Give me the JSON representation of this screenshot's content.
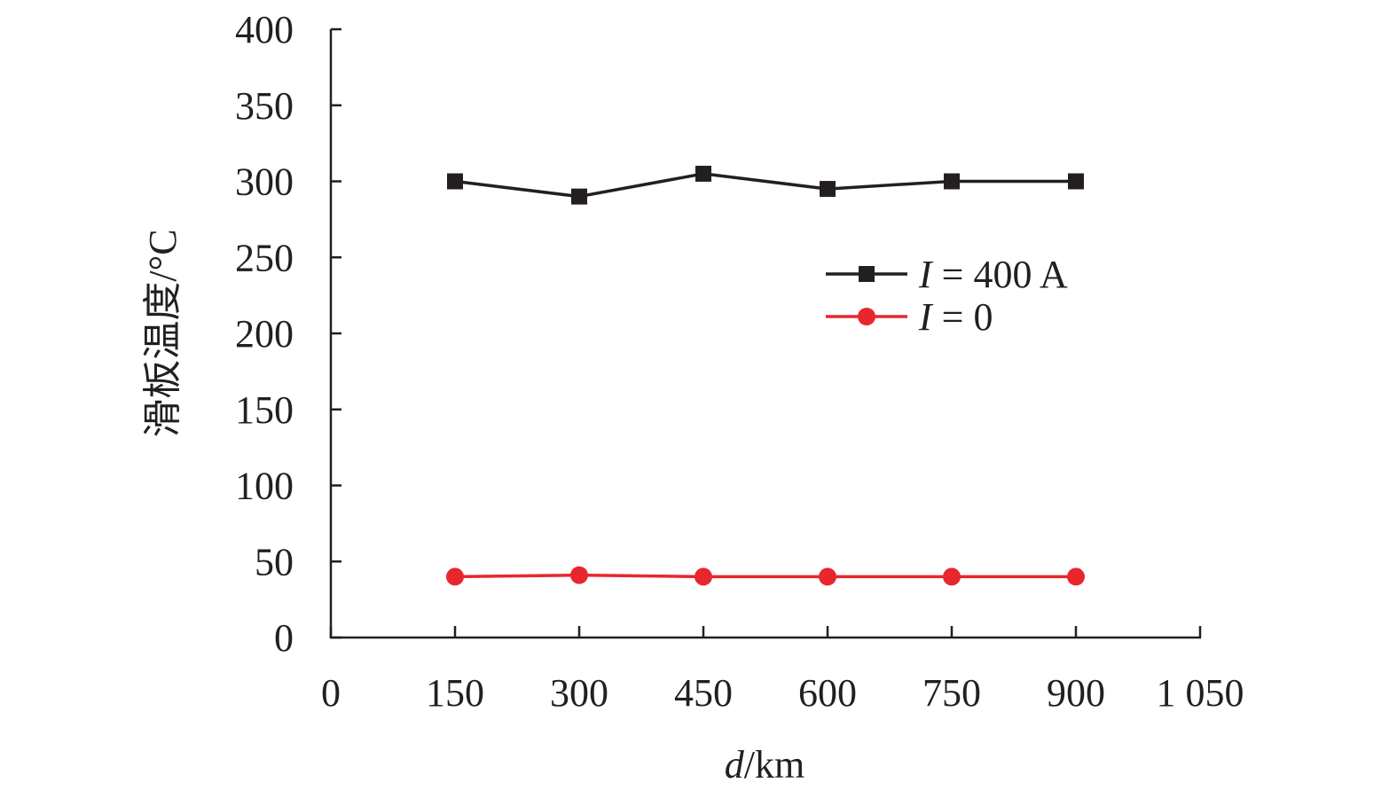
{
  "chart_data": {
    "type": "line",
    "title": "",
    "xlabel_italic": "d",
    "xlabel_unit": "/km",
    "ylabel": "滑板温度/°C",
    "xlim": [
      0,
      1050
    ],
    "ylim": [
      0,
      400
    ],
    "xticks": [
      0,
      150,
      300,
      450,
      600,
      750,
      900,
      1050
    ],
    "xtick_labels": [
      "0",
      "150",
      "300",
      "450",
      "600",
      "750",
      "900",
      "1 050"
    ],
    "yticks": [
      0,
      50,
      100,
      150,
      200,
      250,
      300,
      350,
      400
    ],
    "ytick_labels": [
      "0",
      "50",
      "100",
      "150",
      "200",
      "250",
      "300",
      "350",
      "400"
    ],
    "grid": false,
    "legend_position": "right-middle",
    "x": [
      150,
      300,
      450,
      600,
      750,
      900
    ],
    "series": [
      {
        "name_italic": "I",
        "name_rest": " = 400 A",
        "marker": "square",
        "color": "#231f20",
        "values": [
          300,
          290,
          305,
          295,
          300,
          300
        ]
      },
      {
        "name_italic": "I",
        "name_rest": " = 0",
        "marker": "circle",
        "color": "#e8262d",
        "values": [
          40,
          41,
          40,
          40,
          40,
          40
        ]
      }
    ]
  }
}
